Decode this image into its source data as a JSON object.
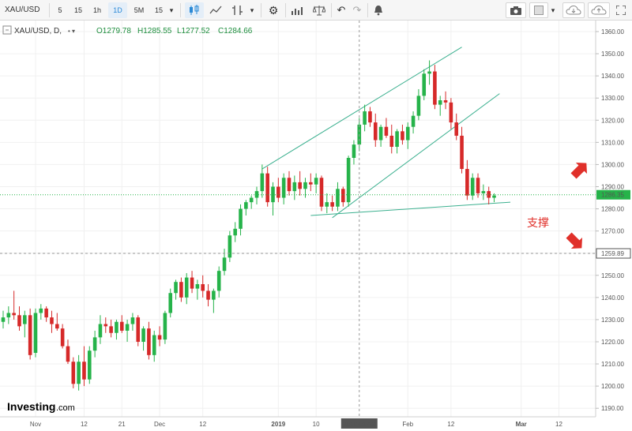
{
  "toolbar": {
    "symbol": "XAU/USD",
    "intervals": [
      {
        "label": "5",
        "selected": false
      },
      {
        "label": "15",
        "selected": false
      },
      {
        "label": "1h",
        "selected": false
      },
      {
        "label": "1D",
        "selected": true
      },
      {
        "label": "5M",
        "selected": false
      },
      {
        "label": "15",
        "selected": false
      }
    ],
    "tools": [
      "candles-icon",
      "line-chart-icon",
      "indicators-icon",
      "dropdown-icon",
      "settings-icon",
      "bar-chart-icon",
      "scale-icon",
      "undo-icon",
      "redo-icon",
      "alert-icon"
    ],
    "right_tools": [
      "camera-icon",
      "square-color-icon",
      "dropdown-icon",
      "cloud-download-icon",
      "cloud-upload-icon",
      "fullscreen-icon"
    ]
  },
  "legend": {
    "title": "XAU/USD, D,",
    "open": "O1279.78",
    "high": "H1285.55",
    "low": "L1277.52",
    "close": "C1284.66"
  },
  "colors": {
    "up": "#26b34a",
    "down": "#d62929",
    "channel": "#3bb08f",
    "last_price_line": "#26b34a",
    "annotation": "#e0302a"
  },
  "chart_data": {
    "type": "candlestick",
    "y_ticks": [
      "1360.00",
      "1350.00",
      "1340.00",
      "1330.00",
      "1320.00",
      "1310.00",
      "1300.00",
      "1290.00",
      "1280.00",
      "1270.00",
      "1260.00",
      "1250.00",
      "1240.00",
      "1230.00",
      "1220.00",
      "1210.00",
      "1200.00",
      "1190.00"
    ],
    "ylim": [
      1186,
      1363
    ],
    "x_ticks": [
      {
        "label": "Nov",
        "i": 6
      },
      {
        "label": "12",
        "i": 15
      },
      {
        "label": "21",
        "i": 22
      },
      {
        "label": "Dec",
        "i": 29
      },
      {
        "label": "12",
        "i": 37
      },
      {
        "label": "2019",
        "i": 51,
        "bold": true
      },
      {
        "label": "10",
        "i": 58
      },
      {
        "label": "Feb",
        "i": 75
      },
      {
        "label": "12",
        "i": 83
      },
      {
        "label": "Mar",
        "i": 96,
        "bold": true
      },
      {
        "label": "12",
        "i": 103
      }
    ],
    "x_count": 107,
    "crosshair_x_label": "2019-01-22",
    "crosshair_x_index": 66,
    "last_price": "1286.35",
    "last_price_value": 1286.35,
    "crosshair_y_label": "1259.89",
    "crosshair_y_value": 1259.89,
    "candles": [
      [
        0,
        1229,
        1234,
        1226,
        1231
      ],
      [
        1,
        1231,
        1236,
        1228,
        1233
      ],
      [
        2,
        1233,
        1243,
        1230,
        1232
      ],
      [
        3,
        1232,
        1236,
        1225,
        1227
      ],
      [
        4,
        1228,
        1234,
        1222,
        1232
      ],
      [
        5,
        1232,
        1235,
        1212,
        1214
      ],
      [
        6,
        1215,
        1235,
        1213,
        1233
      ],
      [
        7,
        1233,
        1237,
        1230,
        1235
      ],
      [
        8,
        1235,
        1236,
        1229,
        1231
      ],
      [
        9,
        1231,
        1234,
        1224,
        1228
      ],
      [
        10,
        1228,
        1233,
        1225,
        1226
      ],
      [
        11,
        1226,
        1228,
        1217,
        1218
      ],
      [
        12,
        1218,
        1221,
        1210,
        1211
      ],
      [
        13,
        1211,
        1213,
        1199,
        1201
      ],
      [
        14,
        1201,
        1214,
        1198,
        1211
      ],
      [
        15,
        1211,
        1218,
        1200,
        1203
      ],
      [
        16,
        1203,
        1218,
        1201,
        1216
      ],
      [
        17,
        1216,
        1225,
        1213,
        1222
      ],
      [
        18,
        1222,
        1232,
        1219,
        1228
      ],
      [
        19,
        1228,
        1231,
        1224,
        1227
      ],
      [
        20,
        1227,
        1230,
        1222,
        1224
      ],
      [
        21,
        1224,
        1230,
        1221,
        1229
      ],
      [
        22,
        1229,
        1232,
        1224,
        1225
      ],
      [
        23,
        1225,
        1230,
        1220,
        1228
      ],
      [
        24,
        1228,
        1233,
        1225,
        1231
      ],
      [
        25,
        1231,
        1232,
        1218,
        1220
      ],
      [
        26,
        1220,
        1227,
        1216,
        1226
      ],
      [
        27,
        1226,
        1229,
        1212,
        1214
      ],
      [
        28,
        1214,
        1225,
        1211,
        1223
      ],
      [
        29,
        1223,
        1227,
        1218,
        1221
      ],
      [
        30,
        1221,
        1234,
        1219,
        1233
      ],
      [
        31,
        1233,
        1244,
        1231,
        1242
      ],
      [
        32,
        1242,
        1248,
        1239,
        1247
      ],
      [
        33,
        1247,
        1249,
        1238,
        1240
      ],
      [
        34,
        1240,
        1251,
        1237,
        1249
      ],
      [
        35,
        1249,
        1252,
        1242,
        1244
      ],
      [
        36,
        1244,
        1248,
        1239,
        1246
      ],
      [
        37,
        1246,
        1250,
        1240,
        1243
      ],
      [
        38,
        1243,
        1246,
        1236,
        1239
      ],
      [
        39,
        1239,
        1244,
        1233,
        1243
      ],
      [
        40,
        1243,
        1254,
        1240,
        1252
      ],
      [
        41,
        1252,
        1262,
        1250,
        1258
      ],
      [
        42,
        1258,
        1270,
        1256,
        1268
      ],
      [
        43,
        1268,
        1274,
        1265,
        1271
      ],
      [
        44,
        1271,
        1282,
        1268,
        1280
      ],
      [
        45,
        1280,
        1284,
        1277,
        1283
      ],
      [
        46,
        1283,
        1286,
        1280,
        1285
      ],
      [
        47,
        1285,
        1290,
        1282,
        1288
      ],
      [
        48,
        1288,
        1300,
        1285,
        1296
      ],
      [
        49,
        1296,
        1299,
        1281,
        1283
      ],
      [
        50,
        1283,
        1292,
        1277,
        1290
      ],
      [
        51,
        1290,
        1294,
        1283,
        1285
      ],
      [
        52,
        1285,
        1296,
        1282,
        1294
      ],
      [
        53,
        1294,
        1297,
        1286,
        1288
      ],
      [
        54,
        1288,
        1295,
        1284,
        1292
      ],
      [
        55,
        1292,
        1297,
        1286,
        1289
      ],
      [
        56,
        1289,
        1294,
        1285,
        1292
      ],
      [
        57,
        1292,
        1296,
        1288,
        1291
      ],
      [
        58,
        1291,
        1296,
        1287,
        1294
      ],
      [
        59,
        1294,
        1295,
        1279,
        1281
      ],
      [
        60,
        1281,
        1287,
        1278,
        1283
      ],
      [
        61,
        1283,
        1286,
        1279,
        1281
      ],
      [
        62,
        1281,
        1292,
        1279,
        1289
      ],
      [
        63,
        1289,
        1290,
        1281,
        1283
      ],
      [
        64,
        1283,
        1304,
        1281,
        1303
      ],
      [
        65,
        1303,
        1311,
        1300,
        1309
      ],
      [
        66,
        1309,
        1321,
        1306,
        1318
      ],
      [
        67,
        1318,
        1327,
        1315,
        1324
      ],
      [
        68,
        1324,
        1326,
        1317,
        1319
      ],
      [
        69,
        1319,
        1323,
        1308,
        1311
      ],
      [
        70,
        1311,
        1318,
        1308,
        1317
      ],
      [
        71,
        1317,
        1321,
        1312,
        1313
      ],
      [
        72,
        1313,
        1318,
        1305,
        1308
      ],
      [
        73,
        1308,
        1316,
        1305,
        1315
      ],
      [
        74,
        1315,
        1318,
        1309,
        1311
      ],
      [
        75,
        1311,
        1319,
        1307,
        1317
      ],
      [
        76,
        1317,
        1324,
        1314,
        1322
      ],
      [
        77,
        1322,
        1334,
        1320,
        1331
      ],
      [
        78,
        1331,
        1343,
        1329,
        1341
      ],
      [
        79,
        1341,
        1347,
        1336,
        1342
      ],
      [
        80,
        1342,
        1345,
        1325,
        1327
      ],
      [
        81,
        1327,
        1331,
        1322,
        1329
      ],
      [
        82,
        1329,
        1333,
        1325,
        1328
      ],
      [
        83,
        1328,
        1330,
        1316,
        1319
      ],
      [
        84,
        1319,
        1323,
        1311,
        1313
      ],
      [
        85,
        1313,
        1317,
        1296,
        1298
      ],
      [
        86,
        1298,
        1302,
        1284,
        1286
      ],
      [
        87,
        1286,
        1296,
        1284,
        1294
      ],
      [
        88,
        1294,
        1296,
        1285,
        1287
      ],
      [
        89,
        1287,
        1291,
        1284,
        1288
      ],
      [
        90,
        1288,
        1290,
        1282,
        1285
      ],
      [
        91,
        1285,
        1287,
        1283,
        1286
      ]
    ],
    "trendlines": [
      {
        "name": "channel-upper",
        "from": [
          48,
          1298
        ],
        "to": [
          85,
          1353
        ]
      },
      {
        "name": "channel-lower",
        "from": [
          61,
          1276
        ],
        "to": [
          92,
          1332
        ]
      },
      {
        "name": "support-line",
        "from": [
          57,
          1277
        ],
        "to": [
          94,
          1283
        ]
      }
    ],
    "annotations": [
      {
        "text": "支撑",
        "kind": "label"
      },
      {
        "kind": "arrow-up",
        "color": "#e0302a"
      },
      {
        "kind": "arrow-down",
        "color": "#e0302a"
      }
    ],
    "watermark": {
      "brand": "Investing",
      "suffix": ".com"
    }
  }
}
